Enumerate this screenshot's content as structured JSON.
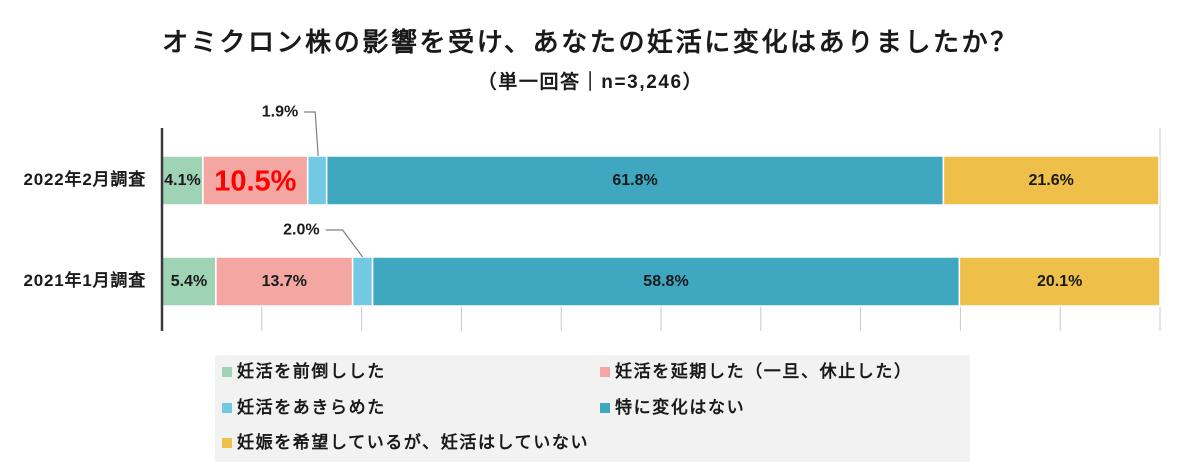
{
  "chart_data": {
    "type": "bar",
    "orientation": "horizontal",
    "stacked": true,
    "title": "オミクロン株の影響を受け、あなたの妊活に変化はありましたか？",
    "subtitle": "（単一回答｜n=3,246）",
    "categories": [
      "2022年2月調査",
      "2021年1月調査"
    ],
    "series": [
      {
        "name": "妊活を前倒しした",
        "color": "#9fd3b5",
        "values": [
          4.1,
          5.4
        ]
      },
      {
        "name": "妊活を延期した（一旦、休止した）",
        "color": "#f4a6a2",
        "values": [
          10.5,
          13.7
        ]
      },
      {
        "name": "妊活をあきらめた",
        "color": "#73c8e2",
        "values": [
          1.9,
          2.0
        ]
      },
      {
        "name": "特に変化はない",
        "color": "#3fa8c0",
        "values": [
          61.8,
          58.8
        ]
      },
      {
        "name": "妊娠を希望しているが、妊活はしていない",
        "color": "#eebf49",
        "values": [
          21.6,
          20.1
        ]
      }
    ],
    "unit": "%",
    "xlim": [
      0,
      100
    ],
    "xticks": [
      10,
      20,
      30,
      40,
      50,
      60,
      70,
      80,
      90,
      100
    ],
    "legend": "bottom",
    "highlight": {
      "series": 1,
      "category": 0,
      "color": "#ff0000"
    },
    "callout_series": 2
  }
}
